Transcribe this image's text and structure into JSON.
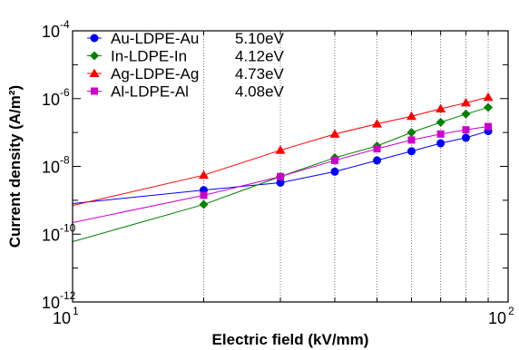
{
  "chart_data": {
    "type": "line",
    "title": "",
    "xlabel": "Electric field (kV/mm)",
    "ylabel": "Current density (A/m²)",
    "x_scale": "log",
    "y_scale": "log",
    "xlim": [
      10,
      100
    ],
    "ylim": [
      1e-12,
      0.0001
    ],
    "x_ticks": [
      {
        "value": 10,
        "base": "10",
        "exp": "1"
      },
      {
        "value": 100,
        "base": "10",
        "exp": "2"
      }
    ],
    "y_ticks": [
      {
        "value": 1e-12,
        "base": "10",
        "exp": "-12"
      },
      {
        "value": 1e-10,
        "base": "10",
        "exp": "-10"
      },
      {
        "value": 1e-08,
        "base": "10",
        "exp": "-8"
      },
      {
        "value": 1e-06,
        "base": "10",
        "exp": "-6"
      },
      {
        "value": 0.0001,
        "base": "10",
        "exp": "-4"
      }
    ],
    "vertical_gridlines_at": [
      20,
      30,
      40,
      50,
      60,
      70,
      80,
      90
    ],
    "legend_position": "top-left",
    "series": [
      {
        "name": "Au-LDPE-Au",
        "work_function": "5.10eV",
        "color": "#0000ff",
        "marker": "circle",
        "x": [
          20,
          30,
          40,
          50,
          60,
          70,
          80,
          90
        ],
        "y": [
          2e-09,
          3.3e-09,
          7e-09,
          1.5e-08,
          2.8e-08,
          4.8e-08,
          7e-08,
          1.1e-07
        ],
        "fit_from": {
          "x": 10,
          "y": 8e-10
        }
      },
      {
        "name": "In-LDPE-In",
        "work_function": "4.12eV",
        "color": "#008000",
        "marker": "diamond",
        "x": [
          20,
          30,
          40,
          50,
          60,
          70,
          80,
          90
        ],
        "y": [
          7.5e-10,
          5e-09,
          1.8e-08,
          4e-08,
          1e-07,
          2e-07,
          3.5e-07,
          5.5e-07
        ],
        "fit_from": {
          "x": 10,
          "y": 6e-11
        }
      },
      {
        "name": "Ag-LDPE-Ag",
        "work_function": "4.73eV",
        "color": "#ff0000",
        "marker": "triangle",
        "x": [
          20,
          30,
          40,
          50,
          60,
          70,
          80,
          90
        ],
        "y": [
          5.5e-09,
          3e-08,
          9e-08,
          1.8e-07,
          3e-07,
          5e-07,
          7.5e-07,
          1.1e-06
        ],
        "fit_from": {
          "x": 10,
          "y": 7e-10
        }
      },
      {
        "name": "Al-LDPE-Al",
        "work_function": "4.08eV",
        "color": "#cc00cc",
        "marker": "square",
        "x": [
          20,
          30,
          40,
          50,
          60,
          70,
          80,
          90
        ],
        "y": [
          1.4e-09,
          5e-09,
          1.5e-08,
          3.3e-08,
          6e-08,
          9e-08,
          1.2e-07,
          1.5e-07
        ],
        "fit_from": {
          "x": 10,
          "y": 2.2e-10
        }
      }
    ]
  }
}
